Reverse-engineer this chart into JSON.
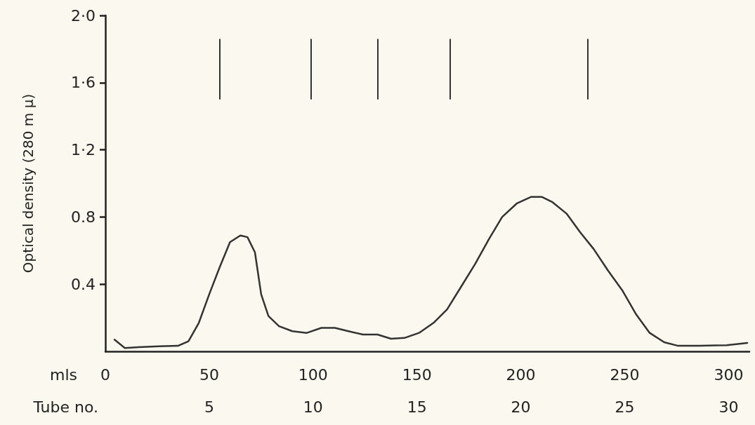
{
  "chart_data": {
    "type": "line",
    "ylabel": "Optical density (280 m μ)",
    "xlabel": "mls",
    "x2label": "Tube no.",
    "x": [
      4.4,
      9.4,
      16,
      26,
      35,
      40,
      45,
      50,
      55,
      60,
      65,
      68.4,
      72,
      75,
      78.5,
      83.6,
      90,
      97,
      104,
      110.5,
      117,
      124,
      131,
      137.5,
      144,
      151,
      158,
      164.5,
      171,
      178,
      184.7,
      191,
      198,
      205,
      210,
      215,
      222,
      228.5,
      235,
      242,
      249,
      255.5,
      262,
      269,
      275.7,
      286,
      299,
      309
    ],
    "series": [
      {
        "color": "#333333",
        "values": [
          0.07,
          0.02,
          0.025,
          0.03,
          0.033,
          0.06,
          0.17,
          0.34,
          0.5,
          0.65,
          0.69,
          0.68,
          0.59,
          0.34,
          0.21,
          0.15,
          0.12,
          0.11,
          0.14,
          0.14,
          0.12,
          0.1,
          0.1,
          0.075,
          0.08,
          0.11,
          0.17,
          0.25,
          0.38,
          0.52,
          0.67,
          0.8,
          0.88,
          0.92,
          0.92,
          0.89,
          0.82,
          0.71,
          0.61,
          0.48,
          0.36,
          0.22,
          0.11,
          0.054,
          0.033,
          0.033,
          0.037,
          0.05
        ]
      }
    ],
    "xlim": [
      0,
      310
    ],
    "xticks": [
      0,
      50,
      100,
      150,
      200,
      250,
      300
    ],
    "x2lim": [
      0,
      31
    ],
    "x2ticks": [
      5,
      10,
      15,
      20,
      25,
      30
    ],
    "ylim": [
      0,
      2.0
    ],
    "yticks": [
      {
        "value": 0.4,
        "label": "0.4"
      },
      {
        "value": 0.8,
        "label": "0.8"
      },
      {
        "value": 1.2,
        "label": "1·2"
      },
      {
        "value": 1.6,
        "label": "1·6"
      },
      {
        "value": 2.0,
        "label": "2·0"
      }
    ],
    "ref_lines": [
      {
        "axis": "x",
        "value": 55
      },
      {
        "axis": "x",
        "value": 99
      },
      {
        "axis": "x",
        "value": 131
      },
      {
        "axis": "x",
        "value": 166
      },
      {
        "axis": "x",
        "value": 232
      }
    ],
    "grid": false,
    "marker": "none",
    "line_style": "solid"
  }
}
